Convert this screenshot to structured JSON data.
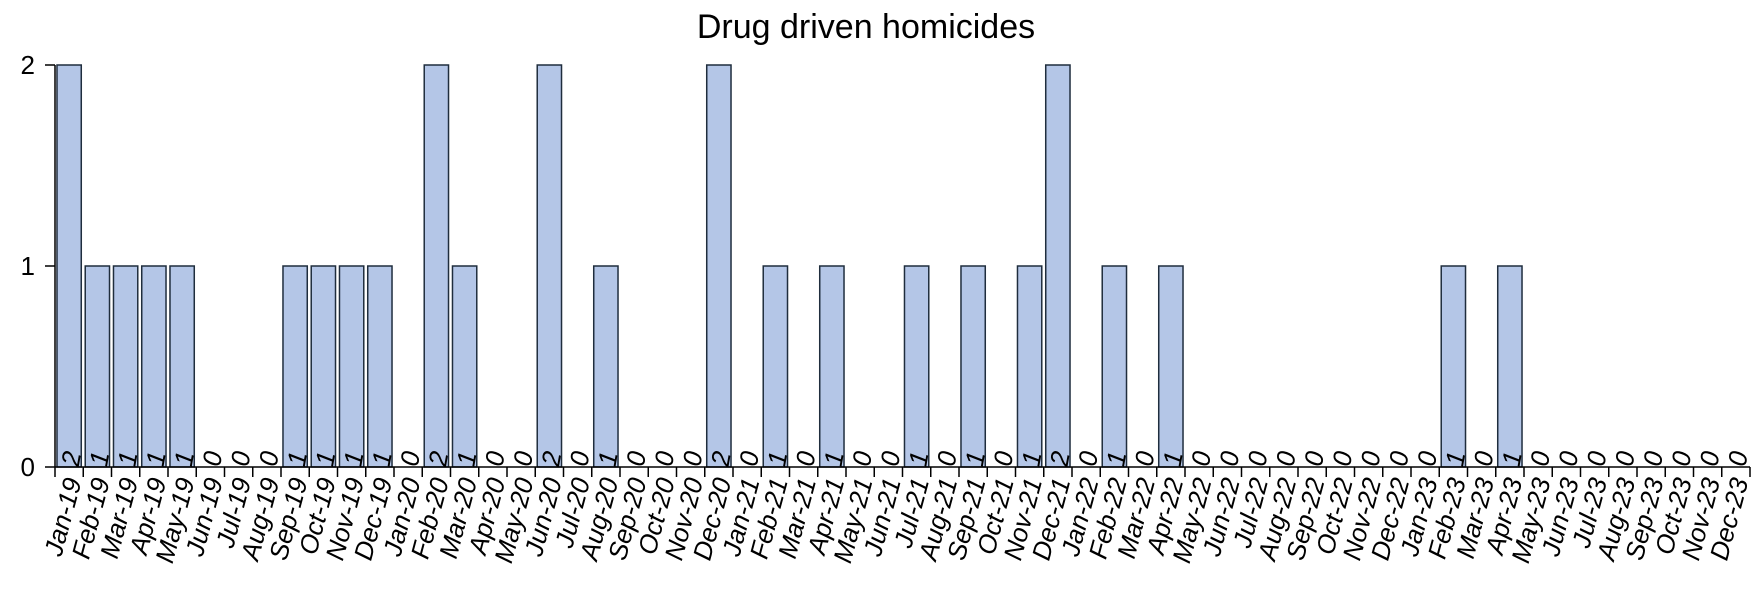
{
  "chart_data": {
    "type": "bar",
    "title": "Drug driven homicides",
    "xlabel": "",
    "ylabel": "",
    "ylim": [
      0,
      2
    ],
    "yticks": [
      0,
      1,
      2
    ],
    "grid": false,
    "bar_color": "#b4c6e7",
    "categories": [
      "Jan-19",
      "Feb-19",
      "Mar-19",
      "Apr-19",
      "May-19",
      "Jun-19",
      "Jul-19",
      "Aug-19",
      "Sep-19",
      "Oct-19",
      "Nov-19",
      "Dec-19",
      "Jan-20",
      "Feb-20",
      "Mar-20",
      "Apr-20",
      "May-20",
      "Jun-20",
      "Jul-20",
      "Aug-20",
      "Sep-20",
      "Oct-20",
      "Nov-20",
      "Dec-20",
      "Jan-21",
      "Feb-21",
      "Mar-21",
      "Apr-21",
      "May-21",
      "Jun-21",
      "Jul-21",
      "Aug-21",
      "Sep-21",
      "Oct-21",
      "Nov-21",
      "Dec-21",
      "Jan-22",
      "Feb-22",
      "Mar-22",
      "Apr-22",
      "May-22",
      "Jun-22",
      "Jul-22",
      "Aug-22",
      "Sep-22",
      "Oct-22",
      "Nov-22",
      "Dec-22",
      "Jan-23",
      "Feb-23",
      "Mar-23",
      "Apr-23",
      "May-23",
      "Jun-23",
      "Jul-23",
      "Aug-23",
      "Sep-23",
      "Oct-23",
      "Nov-23",
      "Dec-23"
    ],
    "values": [
      2,
      1,
      1,
      1,
      1,
      0,
      0,
      0,
      1,
      1,
      1,
      1,
      0,
      2,
      1,
      0,
      0,
      2,
      0,
      1,
      0,
      0,
      0,
      2,
      0,
      1,
      0,
      1,
      0,
      0,
      1,
      0,
      1,
      0,
      1,
      2,
      0,
      1,
      0,
      1,
      0,
      0,
      0,
      0,
      0,
      0,
      0,
      0,
      0,
      1,
      0,
      1,
      0,
      0,
      0,
      0,
      0,
      0,
      0,
      0
    ]
  }
}
